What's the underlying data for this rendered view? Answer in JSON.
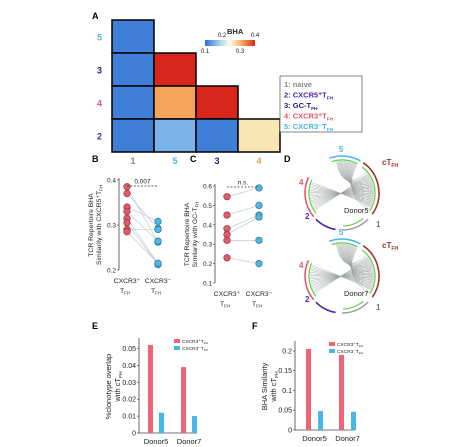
{
  "panels": {
    "A": "A",
    "B": "B",
    "C": "C",
    "D": "D",
    "E": "E",
    "F": "F"
  },
  "chart_data": [
    {
      "id": "A",
      "type": "heatmap",
      "legend_title": "BHA",
      "colorbar_ticks": [
        "0.1",
        "0.2",
        "0.3",
        "0.4"
      ],
      "row_labels": [
        "5",
        "3",
        "4",
        "2"
      ],
      "col_labels": [
        "1",
        "5",
        "3",
        "4"
      ],
      "cells": [
        {
          "row": 0,
          "col": 0,
          "value": 0.05,
          "color": "#3f7fd8"
        },
        {
          "row": 1,
          "col": 0,
          "value": 0.05,
          "color": "#3f7fd8"
        },
        {
          "row": 1,
          "col": 1,
          "value": 0.4,
          "color": "#d9261c"
        },
        {
          "row": 2,
          "col": 0,
          "value": 0.05,
          "color": "#3f7fd8"
        },
        {
          "row": 2,
          "col": 1,
          "value": 0.32,
          "color": "#f5a45c"
        },
        {
          "row": 2,
          "col": 2,
          "value": 0.4,
          "color": "#d9261c"
        },
        {
          "row": 3,
          "col": 0,
          "value": 0.05,
          "color": "#3f7fd8"
        },
        {
          "row": 3,
          "col": 1,
          "value": 0.08,
          "color": "#7bb2ea"
        },
        {
          "row": 3,
          "col": 2,
          "value": 0.05,
          "color": "#3f7fd8"
        },
        {
          "row": 3,
          "col": 3,
          "value": 0.22,
          "color": "#f8e7b5"
        }
      ],
      "legend": [
        {
          "text": "1: naive",
          "color": "#888888"
        },
        {
          "text": "2: CXCR5⁺T",
          "sub": "FH",
          "color": "#4b2aa8"
        },
        {
          "text": "3: GC-T",
          "sub": "FH",
          "color": "#1c1f6e"
        },
        {
          "text": "4: CXCR3⁺T",
          "sub": "FH",
          "color": "#e25a6a"
        },
        {
          "text": "5: CXCR3⁻T",
          "sub": "FH",
          "color": "#44b6e0"
        }
      ]
    },
    {
      "id": "B",
      "type": "scatter",
      "ylabel_line1": "TCR Repertoire BHA",
      "ylabel_line2": "Similarity with CXCR5⁺T",
      "ylabel_sub": "FH",
      "ylim": [
        0.2,
        0.4
      ],
      "yticks": [
        "0.2",
        "0.3",
        "0.4"
      ],
      "categories": [
        {
          "name": "CXCR3⁺",
          "sub": "T",
          "subsub": "FH"
        },
        {
          "name": "CXCR3⁻",
          "sub": "T",
          "subsub": "FH"
        }
      ],
      "significance": "0.007",
      "pairs": [
        [
          0.385,
          0.262
        ],
        [
          0.37,
          0.292
        ],
        [
          0.34,
          0.308
        ],
        [
          0.33,
          0.264
        ],
        [
          0.315,
          0.214
        ],
        [
          0.305,
          0.212
        ],
        [
          0.29,
          0.29
        ],
        [
          0.285,
          0.215
        ]
      ],
      "colors": [
        "#e05a6a",
        "#4cb7e0"
      ]
    },
    {
      "id": "C",
      "type": "scatter",
      "ylabel_line1": "TCR Repertoire BHA",
      "ylabel_line2": "Similarity with GC-T",
      "ylabel_sub": "FH",
      "ylim": [
        0.1,
        0.6
      ],
      "yticks": [
        "0.1",
        "0.2",
        "0.3",
        "0.4",
        "0.5",
        "0.6"
      ],
      "categories": [
        {
          "name": "CXCR3⁺",
          "sub": "T",
          "subsub": "FH"
        },
        {
          "name": "CXCR3⁻",
          "sub": "T",
          "subsub": "FH"
        }
      ],
      "significance": "n.s.",
      "pairs": [
        [
          0.545,
          0.59
        ],
        [
          0.45,
          0.5
        ],
        [
          0.38,
          0.45
        ],
        [
          0.35,
          0.44
        ],
        [
          0.32,
          0.32
        ],
        [
          0.23,
          0.2
        ]
      ],
      "colors": [
        "#e05a6a",
        "#4cb7e0"
      ]
    },
    {
      "id": "E",
      "type": "bar",
      "categories": [
        "Donor5",
        "Donor7"
      ],
      "ylabel_line1": "%clonotype overlap",
      "ylabel_line2": "with cT",
      "ylabel_sub": "FH",
      "ylim": [
        0,
        0.055
      ],
      "yticks": [
        "0",
        "0.01",
        "0.02",
        "0.03",
        "0.04",
        "0.05"
      ],
      "series": [
        {
          "name": "CXCR3⁺T",
          "sub": "FH",
          "color": "#ee6478",
          "values": [
            0.052,
            0.039
          ]
        },
        {
          "name": "CXCR3⁻T",
          "sub": "FH",
          "color": "#48b8e6",
          "values": [
            0.012,
            0.01
          ]
        }
      ]
    },
    {
      "id": "F",
      "type": "bar",
      "categories": [
        "Donor5",
        "Donor7"
      ],
      "ylabel_line1": "BHA Similarity",
      "ylabel_line2": "with cT",
      "ylabel_sub": "FH",
      "ylim": [
        0,
        0.22
      ],
      "yticks": [
        "0",
        "0.05",
        "0.1",
        "0.15",
        "0.2"
      ],
      "series": [
        {
          "name": "CXCR3⁺T",
          "sub": "FH",
          "color": "#ee6478",
          "values": [
            0.205,
            0.19
          ]
        },
        {
          "name": "CXCR3⁻T",
          "sub": "FH",
          "color": "#48b8e6",
          "values": [
            0.048,
            0.046
          ]
        }
      ]
    }
  ],
  "chord": {
    "label_5": "5",
    "label_4": "4",
    "label_2": "2",
    "label_1": "1",
    "ctfh": "cT",
    "ctfh_sub": "FH",
    "donors": [
      "Donor5",
      "Donor7"
    ],
    "colors": {
      "5": "#48b8e6",
      "4": "#e25a6a",
      "2": "#4b2aa8",
      "1": "#999999",
      "ctfh": "#a2352b",
      "green": "#5cd14a",
      "links": "#9aa0a0"
    }
  }
}
